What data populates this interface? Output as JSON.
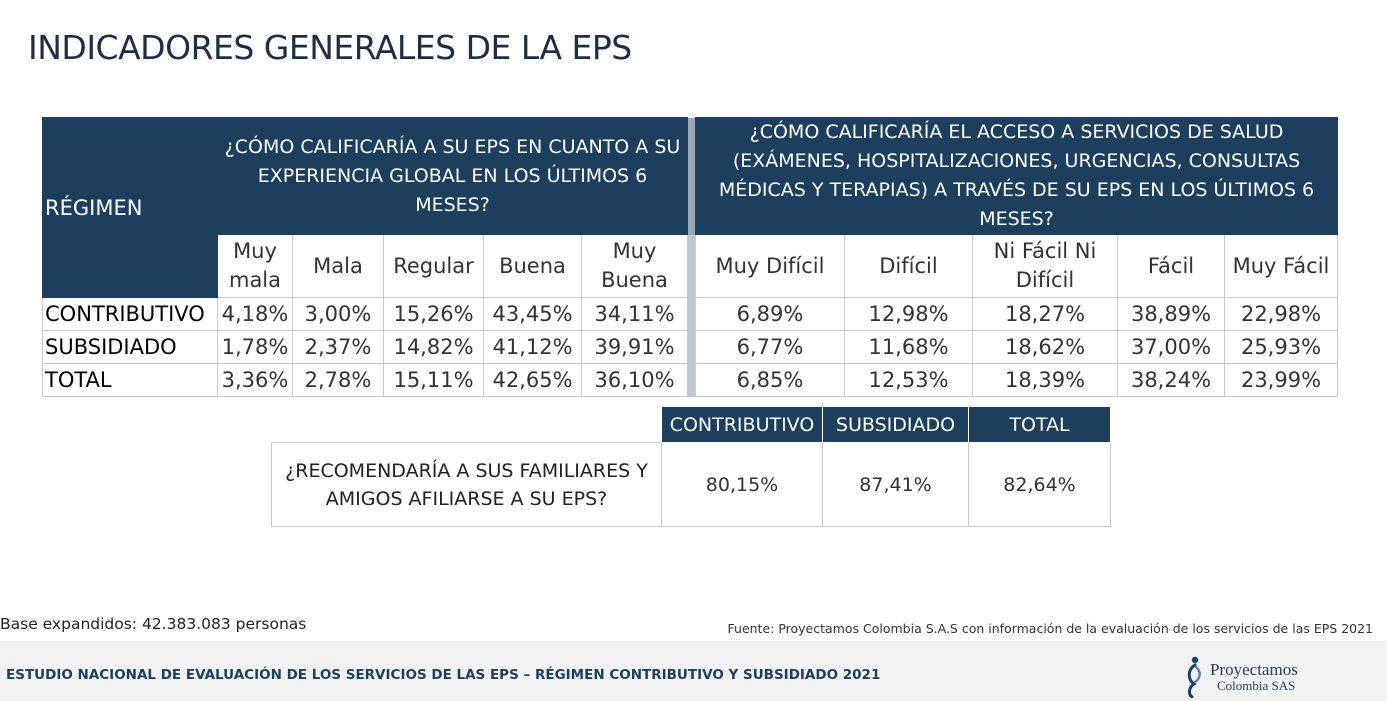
{
  "page": {
    "title": "INDICADORES GENERALES DE LA EPS"
  },
  "main_table": {
    "regimen_header": "RÉGIMEN",
    "question1": "¿CÓMO CALIFICARÍA A SU EPS EN CUANTO A SU EXPERIENCIA GLOBAL EN LOS ÚLTIMOS 6 MESES?",
    "question2": "¿CÓMO CALIFICARÍA EL ACCESO A SERVICIOS DE SALUD (EXÁMENES, HOSPITALIZACIONES, URGENCIAS, CONSULTAS MÉDICAS Y TERAPIAS) A TRAVÉS DE SU EPS EN LOS ÚLTIMOS 6 MESES?",
    "q1_columns": [
      "Muy mala",
      "Mala",
      "Regular",
      "Buena",
      "Muy Buena"
    ],
    "q2_columns": [
      "Muy Difícil",
      "Difícil",
      "Ni Fácil Ni Difícil",
      "Fácil",
      "Muy Fácil"
    ],
    "rows": [
      {
        "label": "CONTRIBUTIVO",
        "q1": [
          "4,18%",
          "3,00%",
          "15,26%",
          "43,45%",
          "34,11%"
        ],
        "q2": [
          "6,89%",
          "12,98%",
          "18,27%",
          "38,89%",
          "22,98%"
        ]
      },
      {
        "label": "SUBSIDIADO",
        "q1": [
          "1,78%",
          "2,37%",
          "14,82%",
          "41,12%",
          "39,91%"
        ],
        "q2": [
          "6,77%",
          "11,68%",
          "18,62%",
          "37,00%",
          "25,93%"
        ]
      },
      {
        "label": "TOTAL",
        "q1": [
          "3,36%",
          "2,78%",
          "15,11%",
          "42,65%",
          "36,10%"
        ],
        "q2": [
          "6,85%",
          "12,53%",
          "18,39%",
          "38,24%",
          "23,99%"
        ]
      }
    ]
  },
  "recommend_table": {
    "headers": [
      "CONTRIBUTIVO",
      "SUBSIDIADO",
      "TOTAL"
    ],
    "question": "¿RECOMENDARÍA A SUS FAMILIARES Y AMIGOS AFILIARSE A SU EPS?",
    "values": [
      "80,15%",
      "87,41%",
      "82,64%"
    ]
  },
  "notes": {
    "base": "Base expandidos: 42.383.083 personas",
    "fuente": "Fuente: Proyectamos Colombia S.A.S con información de la evaluación de los servicios de las EPS 2021"
  },
  "footer": {
    "text": "ESTUDIO NACIONAL DE EVALUACIÓN DE LOS SERVICIOS DE LAS EPS – RÉGIMEN CONTRIBUTIVO Y SUBSIDIADO 2021",
    "logo_name": "Proyectamos",
    "logo_sub": "Colombia SAS"
  },
  "colors": {
    "header_bg": "#1c3f5e",
    "title": "#1e2f45"
  }
}
